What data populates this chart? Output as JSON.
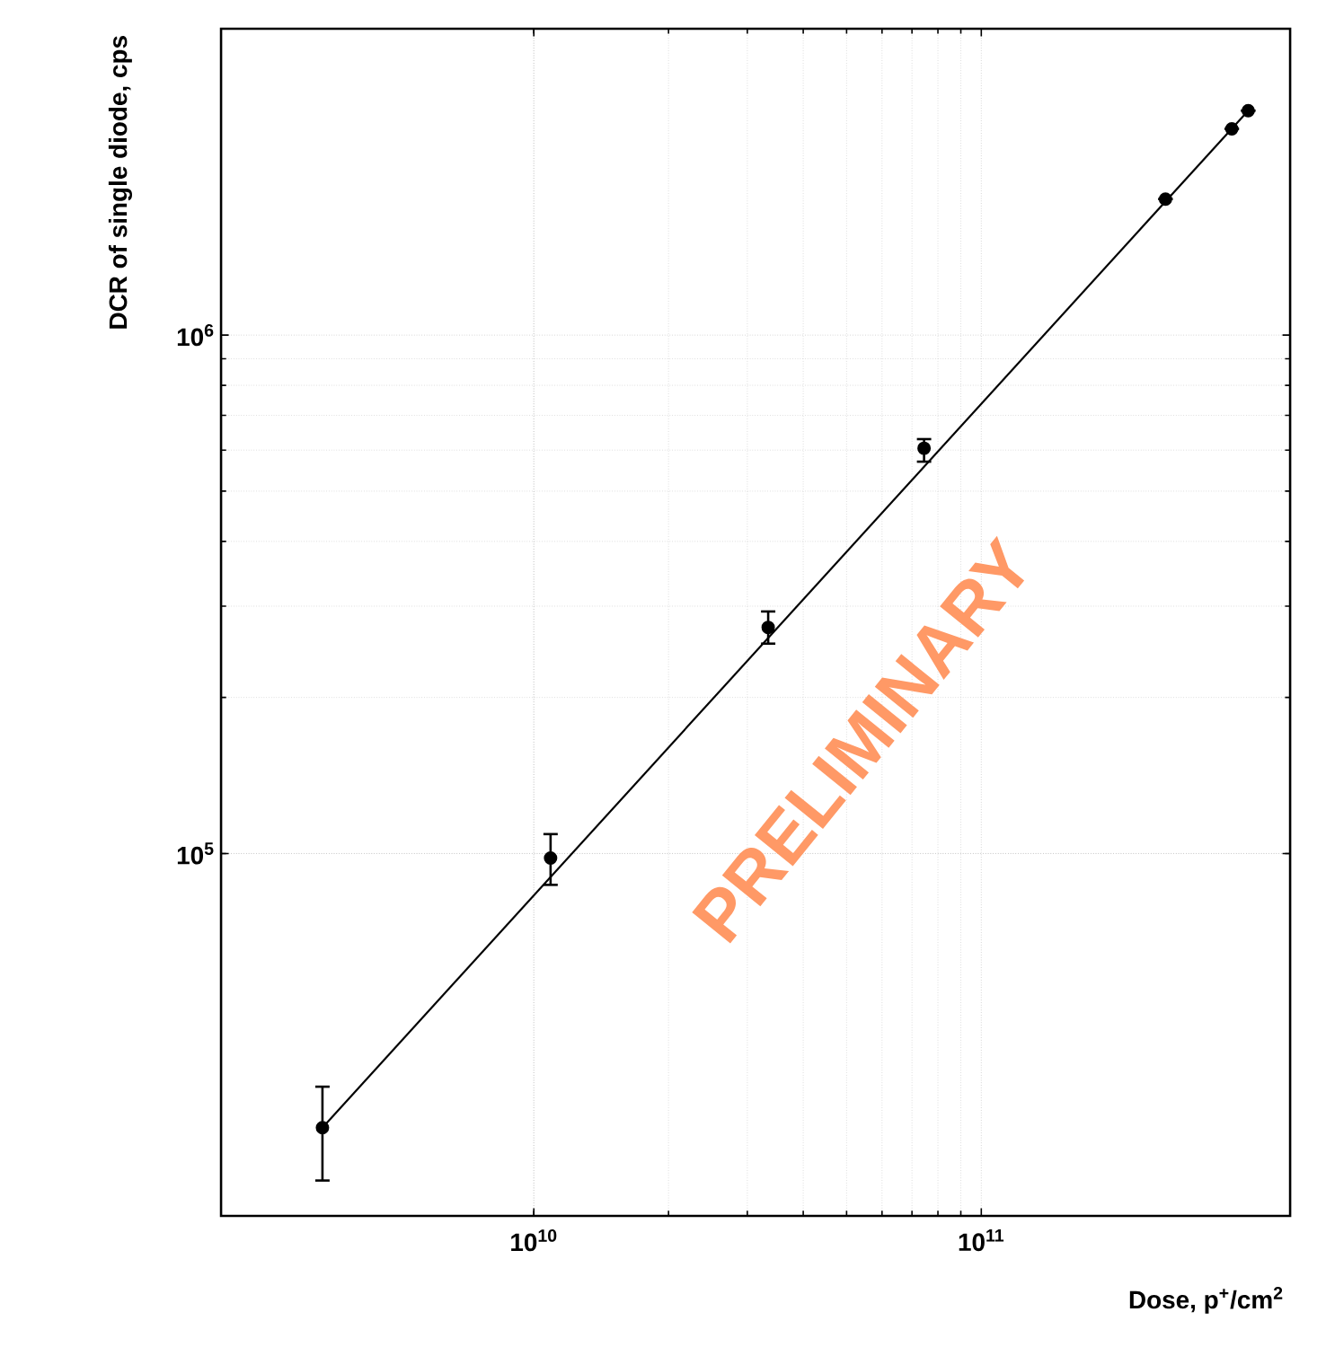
{
  "chart_data": {
    "type": "scatter",
    "xlabel": "Dose, p$^{+}$/cm$^{2}$",
    "ylabel": "DCR of single diode, cps",
    "log": "xy",
    "grid": true,
    "xlim": [
      2000000000.0,
      490000000000.0
    ],
    "ylim": [
      20000.0,
      3900000.0
    ],
    "xticks": [
      {
        "value": 10000000000.0,
        "label": "10$^{10}$"
      },
      {
        "value": 100000000000.0,
        "label": "10$^{11}$"
      }
    ],
    "yticks": [
      {
        "value": 100000.0,
        "label": "10$^{5}$"
      },
      {
        "value": 1000000.0,
        "label": "10$^{6}$"
      }
    ],
    "annotations": [
      "PRELIMINARY"
    ],
    "series": [
      {
        "color": "#000000",
        "marker": "circle",
        "x": [
          3370000000.0,
          10900000000.0,
          33400000000.0,
          74500000000.0,
          258000000000.0,
          363000000000.0,
          395000000000.0
        ],
        "values": [
          29600.0,
          98000.0,
          273000.0,
          605000.0,
          1830000.0,
          2500000.0,
          2710000.0
        ],
        "errors": [
          [
            23400.0,
            35500.0
          ],
          [
            87000.0,
            109000.0
          ],
          [
            254000.0,
            293000.0
          ],
          [
            570000.0,
            630000.0
          ],
          null,
          null,
          null
        ]
      },
      {
        "type": "line",
        "color": "#000000",
        "marker": "none",
        "x": [
          3370000000.0,
          395000000000.0
        ],
        "values": [
          29600.0,
          2710000.0
        ]
      }
    ]
  }
}
